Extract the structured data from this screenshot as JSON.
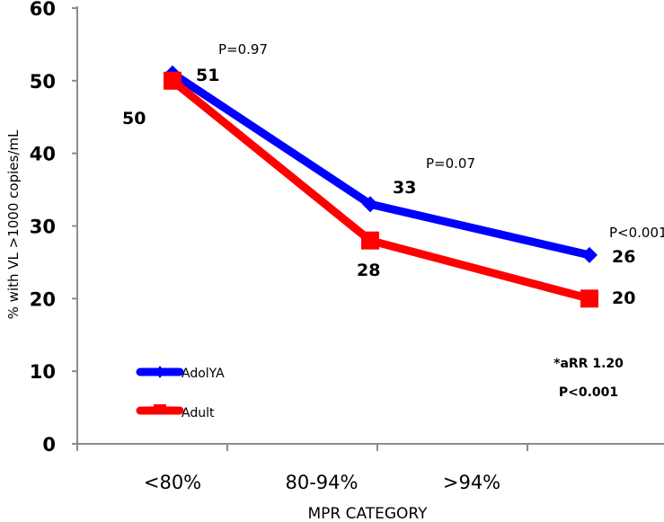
{
  "chart_data": {
    "type": "line",
    "title": "",
    "xlabel": "MPR CATEGORY",
    "ylabel": "% with VL >1000 copies/mL",
    "ylim": [
      0,
      60
    ],
    "yticks": [
      0,
      10,
      20,
      30,
      40,
      50,
      60
    ],
    "ytick_labels": [
      "0",
      "10",
      "20",
      "30",
      "40",
      "50",
      "60"
    ],
    "categories": [
      "<80%",
      "80-94%",
      ">94%"
    ],
    "grid": false,
    "legend_position": "bottom-left",
    "series": [
      {
        "name": "AdolYA",
        "color": "#0000FF",
        "marker": "diamond",
        "values": [
          51,
          33,
          26
        ],
        "labels": [
          "51",
          "33",
          "26"
        ]
      },
      {
        "name": "Adult",
        "color": "#FF0000",
        "marker": "square",
        "values": [
          50,
          28,
          20
        ],
        "labels": [
          "50",
          "28",
          "20"
        ]
      }
    ],
    "annotations": {
      "p_values": [
        "P=0.97",
        "P=0.07",
        "P<0.001"
      ],
      "arr_line1": "*aRR 1.20",
      "arr_line2": "P<0.001"
    }
  }
}
